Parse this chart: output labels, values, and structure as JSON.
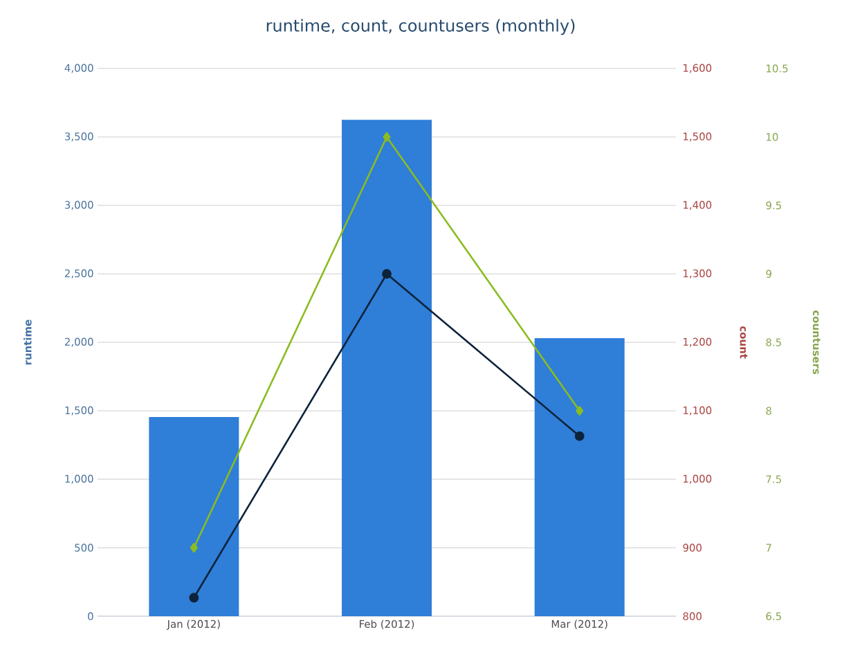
{
  "chart_data": {
    "type": "bar",
    "title": "runtime, count, countusers (monthly)",
    "categories": [
      "Jan (2012)",
      "Feb (2012)",
      "Mar (2012)"
    ],
    "series": [
      {
        "axis": "y",
        "color": "#2f7ed8",
        "values": [
          1455,
          3625,
          2030
        ]
      },
      {
        "type": "line",
        "axis": "y2",
        "color": "#0d233a",
        "marker": "circle",
        "values": [
          827,
          1300,
          1063
        ]
      },
      {
        "type": "line",
        "axis": "y3",
        "color": "#8bbc21",
        "marker": "diamond",
        "values": [
          7,
          10,
          8
        ]
      }
    ],
    "ylabel": "runtime",
    "y2label": "count",
    "y3label": "countusers",
    "ylim": [
      0,
      4000
    ],
    "yticks": [
      0,
      500,
      {
        "value": 1000,
        "label": "1,000"
      },
      {
        "value": 1500,
        "label": "1,500"
      },
      {
        "value": 2000,
        "label": "2,000"
      },
      {
        "value": 2500,
        "label": "2,500"
      },
      {
        "value": 3000,
        "label": "3,000"
      },
      {
        "value": 3500,
        "label": "3,500"
      },
      {
        "value": 4000,
        "label": "4,000"
      }
    ],
    "y2lim": [
      800,
      1600
    ],
    "y2ticks": [
      800,
      900,
      {
        "value": 1000,
        "label": "1,000"
      },
      {
        "value": 1100,
        "label": "1,100"
      },
      {
        "value": 1200,
        "label": "1,200"
      },
      {
        "value": 1300,
        "label": "1,300"
      },
      {
        "value": 1400,
        "label": "1,400"
      },
      {
        "value": 1500,
        "label": "1,500"
      },
      {
        "value": 1600,
        "label": "1,600"
      }
    ],
    "y3lim": [
      6.5,
      10.5
    ],
    "y3ticks": [
      6.5,
      7,
      7.5,
      8,
      8.5,
      9,
      9.5,
      10,
      10.5
    ],
    "grid": "y"
  }
}
